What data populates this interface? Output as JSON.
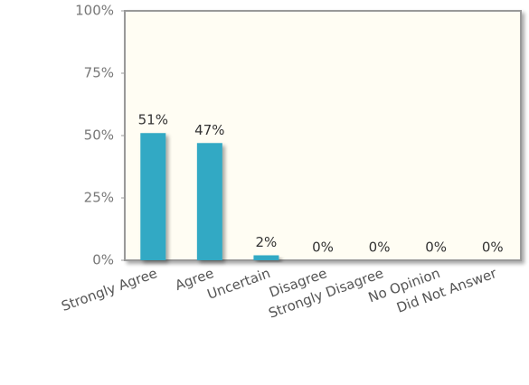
{
  "chart_data": {
    "type": "bar",
    "categories": [
      "Strongly Agree",
      "Agree",
      "Uncertain",
      "Disagree",
      "Strongly Disagree",
      "No Opinion",
      "Did Not Answer"
    ],
    "values": [
      51,
      47,
      2,
      0,
      0,
      0,
      0
    ],
    "value_labels": [
      "51%",
      "47%",
      "2%",
      "0%",
      "0%",
      "0%",
      "0%"
    ],
    "color": "#31a9c4",
    "ylim": [
      0,
      100
    ],
    "yticks": [
      {
        "value": 0,
        "label": "0%"
      },
      {
        "value": 25,
        "label": "25%"
      },
      {
        "value": 50,
        "label": "50%"
      },
      {
        "value": 75,
        "label": "75%"
      },
      {
        "value": 100,
        "label": "100%"
      }
    ],
    "grid": false
  }
}
